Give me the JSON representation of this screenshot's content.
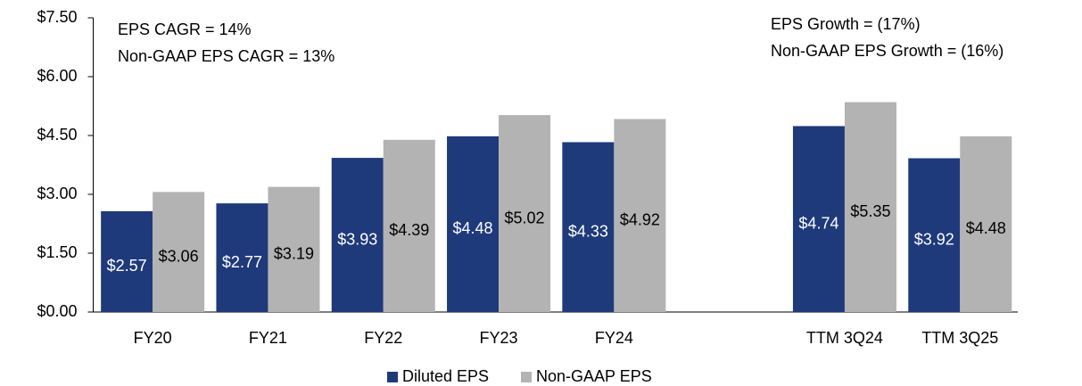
{
  "chart_data": {
    "type": "bar",
    "categories": [
      "FY20",
      "FY21",
      "FY22",
      "FY23",
      "FY24",
      null,
      "TTM 3Q24",
      "TTM 3Q25"
    ],
    "series": [
      {
        "name": "Diluted EPS",
        "color": "#1f3a7a",
        "values": [
          2.57,
          2.77,
          3.93,
          4.48,
          4.33,
          null,
          4.74,
          3.92
        ],
        "value_labels": [
          "$2.57",
          "$2.77",
          "$3.93",
          "$4.48",
          "$4.33",
          null,
          "$4.74",
          "$3.92"
        ]
      },
      {
        "name": "Non-GAAP EPS",
        "color": "#b3b3b3",
        "values": [
          3.06,
          3.19,
          4.39,
          5.02,
          4.92,
          null,
          5.35,
          4.48
        ],
        "value_labels": [
          "$3.06",
          "$3.19",
          "$4.39",
          "$5.02",
          "$4.92",
          null,
          "$5.35",
          "$4.48"
        ]
      }
    ],
    "ylim": [
      0,
      7.5
    ],
    "yticks": [
      {
        "value": 0,
        "label": "$0.00"
      },
      {
        "value": 1.5,
        "label": "$1.50"
      },
      {
        "value": 3,
        "label": "$3.00"
      },
      {
        "value": 4.5,
        "label": "$4.50"
      },
      {
        "value": 6,
        "label": "$6.00"
      },
      {
        "value": 7.5,
        "label": "$7.50"
      }
    ],
    "annotations": [
      "EPS CAGR = 14%",
      "Non-GAAP EPS CAGR = 13%",
      "EPS Growth = (17%)",
      "Non-GAAP EPS Growth = (16%)"
    ],
    "legend": "bottom"
  }
}
